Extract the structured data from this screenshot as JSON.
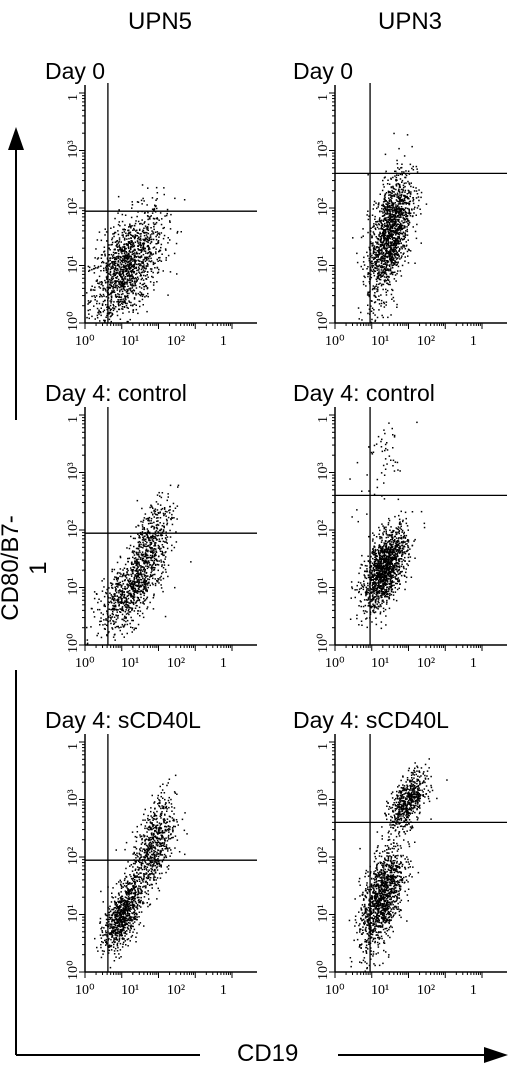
{
  "columns": [
    "UPN5",
    "UPN3"
  ],
  "axes": {
    "y_label": "CD80/B7-1",
    "x_label": "CD19",
    "tick_labels": [
      "10",
      "0",
      "1",
      "2",
      "3"
    ]
  },
  "chart_data": [
    {
      "type": "scatter",
      "title": "Day 0",
      "column": "UPN5",
      "xlabel": "CD19",
      "ylabel": "CD80/B7-1",
      "x_scale": "log",
      "y_scale": "log",
      "xlim": [
        1,
        10000
      ],
      "ylim": [
        1,
        10000
      ],
      "x_ticks": [
        "10⁰",
        "10¹",
        "10²",
        "1"
      ],
      "y_ticks": [
        "10⁰",
        "10¹",
        "10²",
        "10³",
        "1"
      ],
      "quadrant_gates": {
        "x": 4.2,
        "y": 88
      },
      "populations": [
        {
          "center": [
            13,
            9
          ],
          "spread_decades": [
            0.5,
            0.5
          ],
          "events": 1400
        }
      ]
    },
    {
      "type": "scatter",
      "title": "Day 0",
      "column": "UPN3",
      "xlabel": "CD19",
      "ylabel": "CD80/B7-1",
      "x_scale": "log",
      "y_scale": "log",
      "xlim": [
        1,
        10000
      ],
      "ylim": [
        1,
        10000
      ],
      "x_ticks": [
        "10⁰",
        "10¹",
        "10²",
        "1"
      ],
      "y_ticks": [
        "10⁰",
        "10¹",
        "10²",
        "10³",
        "1"
      ],
      "quadrant_gates": {
        "x": 9,
        "y": 400
      },
      "populations": [
        {
          "center": [
            30,
            35
          ],
          "spread_decades": [
            0.3,
            0.55
          ],
          "events": 1500
        }
      ]
    },
    {
      "type": "scatter",
      "title": "Day 4:  control",
      "column": "UPN5",
      "xlabel": "CD19",
      "ylabel": "CD80/B7-1",
      "x_scale": "log",
      "y_scale": "log",
      "xlim": [
        1,
        10000
      ],
      "ylim": [
        1,
        10000
      ],
      "x_ticks": [
        "10⁰",
        "10¹",
        "10²",
        "1"
      ],
      "y_ticks": [
        "10⁰",
        "10¹",
        "10²",
        "10³",
        "1"
      ],
      "quadrant_gates": {
        "x": 4.2,
        "y": 88
      },
      "populations": [
        {
          "center": [
            14,
            8
          ],
          "spread_decades": [
            0.4,
            0.35
          ],
          "events": 700
        },
        {
          "center": [
            60,
            60
          ],
          "spread_decades": [
            0.3,
            0.4
          ],
          "events": 500
        }
      ]
    },
    {
      "type": "scatter",
      "title": "Day 4:  control",
      "column": "UPN3",
      "xlabel": "CD19",
      "ylabel": "CD80/B7-1",
      "x_scale": "log",
      "y_scale": "log",
      "xlim": [
        1,
        10000
      ],
      "ylim": [
        1,
        10000
      ],
      "x_ticks": [
        "10⁰",
        "10¹",
        "10²",
        "1"
      ],
      "y_ticks": [
        "10⁰",
        "10¹",
        "10²",
        "10³",
        "1"
      ],
      "quadrant_gates": {
        "x": 9,
        "y": 400
      },
      "populations": [
        {
          "center": [
            22,
            22
          ],
          "spread_decades": [
            0.3,
            0.35
          ],
          "events": 1400
        },
        {
          "center": [
            15,
            1500
          ],
          "spread_decades": [
            0.4,
            0.5
          ],
          "events": 60
        }
      ]
    },
    {
      "type": "scatter",
      "title": "Day 4: sCD40L",
      "column": "UPN5",
      "xlabel": "CD19",
      "ylabel": "CD80/B7-1",
      "x_scale": "log",
      "y_scale": "log",
      "xlim": [
        1,
        10000
      ],
      "ylim": [
        1,
        10000
      ],
      "x_ticks": [
        "10⁰",
        "10¹",
        "10²",
        "1"
      ],
      "y_ticks": [
        "10⁰",
        "10¹",
        "10²",
        "10³",
        "1"
      ],
      "quadrant_gates": {
        "x": 4.2,
        "y": 88
      },
      "populations": [
        {
          "center": [
            10,
            10
          ],
          "spread_decades": [
            0.25,
            0.3
          ],
          "events": 800
        },
        {
          "center": [
            70,
            150
          ],
          "spread_decades": [
            0.3,
            0.45
          ],
          "events": 700
        }
      ]
    },
    {
      "type": "scatter",
      "title": "Day 4: sCD40L",
      "column": "UPN3",
      "xlabel": "CD19",
      "ylabel": "CD80/B7-1",
      "x_scale": "log",
      "y_scale": "log",
      "xlim": [
        1,
        10000
      ],
      "ylim": [
        1,
        10000
      ],
      "x_ticks": [
        "10⁰",
        "10¹",
        "10²",
        "1"
      ],
      "y_ticks": [
        "10⁰",
        "10¹",
        "10²",
        "10³",
        "1"
      ],
      "quadrant_gates": {
        "x": 9,
        "y": 400
      },
      "populations": [
        {
          "center": [
            18,
            20
          ],
          "spread_decades": [
            0.3,
            0.45
          ],
          "events": 1200
        },
        {
          "center": [
            90,
            900
          ],
          "spread_decades": [
            0.25,
            0.25
          ],
          "events": 600
        }
      ]
    }
  ]
}
